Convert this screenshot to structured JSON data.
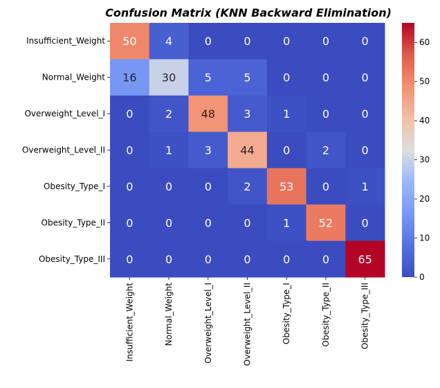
{
  "chart_data": {
    "type": "heatmap",
    "title": "Confusion Matrix (KNN Backward Elimination)",
    "xlabel": "",
    "ylabel": "",
    "row_labels": [
      "Insufficient_Weight",
      "Normal_Weight",
      "Overweight_Level_I",
      "Overweight_Level_II",
      "Obesity_Type_I",
      "Obesity_Type_II",
      "Obesity_Type_III"
    ],
    "col_labels": [
      "Insufficient_Weight",
      "Normal_Weight",
      "Overweight_Level_I",
      "Overweight_Level_II",
      "Obesity_Type_I",
      "Obesity_Type_II",
      "Obesity_Type_III"
    ],
    "values": [
      [
        50,
        4,
        0,
        0,
        0,
        0,
        0
      ],
      [
        16,
        30,
        5,
        5,
        0,
        0,
        0
      ],
      [
        0,
        2,
        48,
        3,
        1,
        0,
        0
      ],
      [
        0,
        1,
        3,
        44,
        0,
        2,
        0
      ],
      [
        0,
        0,
        0,
        2,
        53,
        0,
        1
      ],
      [
        0,
        0,
        0,
        0,
        1,
        52,
        0
      ],
      [
        0,
        0,
        0,
        0,
        0,
        0,
        65
      ]
    ],
    "colormap": "coolwarm",
    "color_range": [
      0,
      65
    ],
    "colorbar_ticks": [
      0,
      10,
      20,
      30,
      40,
      50,
      60
    ],
    "annotated": true,
    "grid": false
  }
}
